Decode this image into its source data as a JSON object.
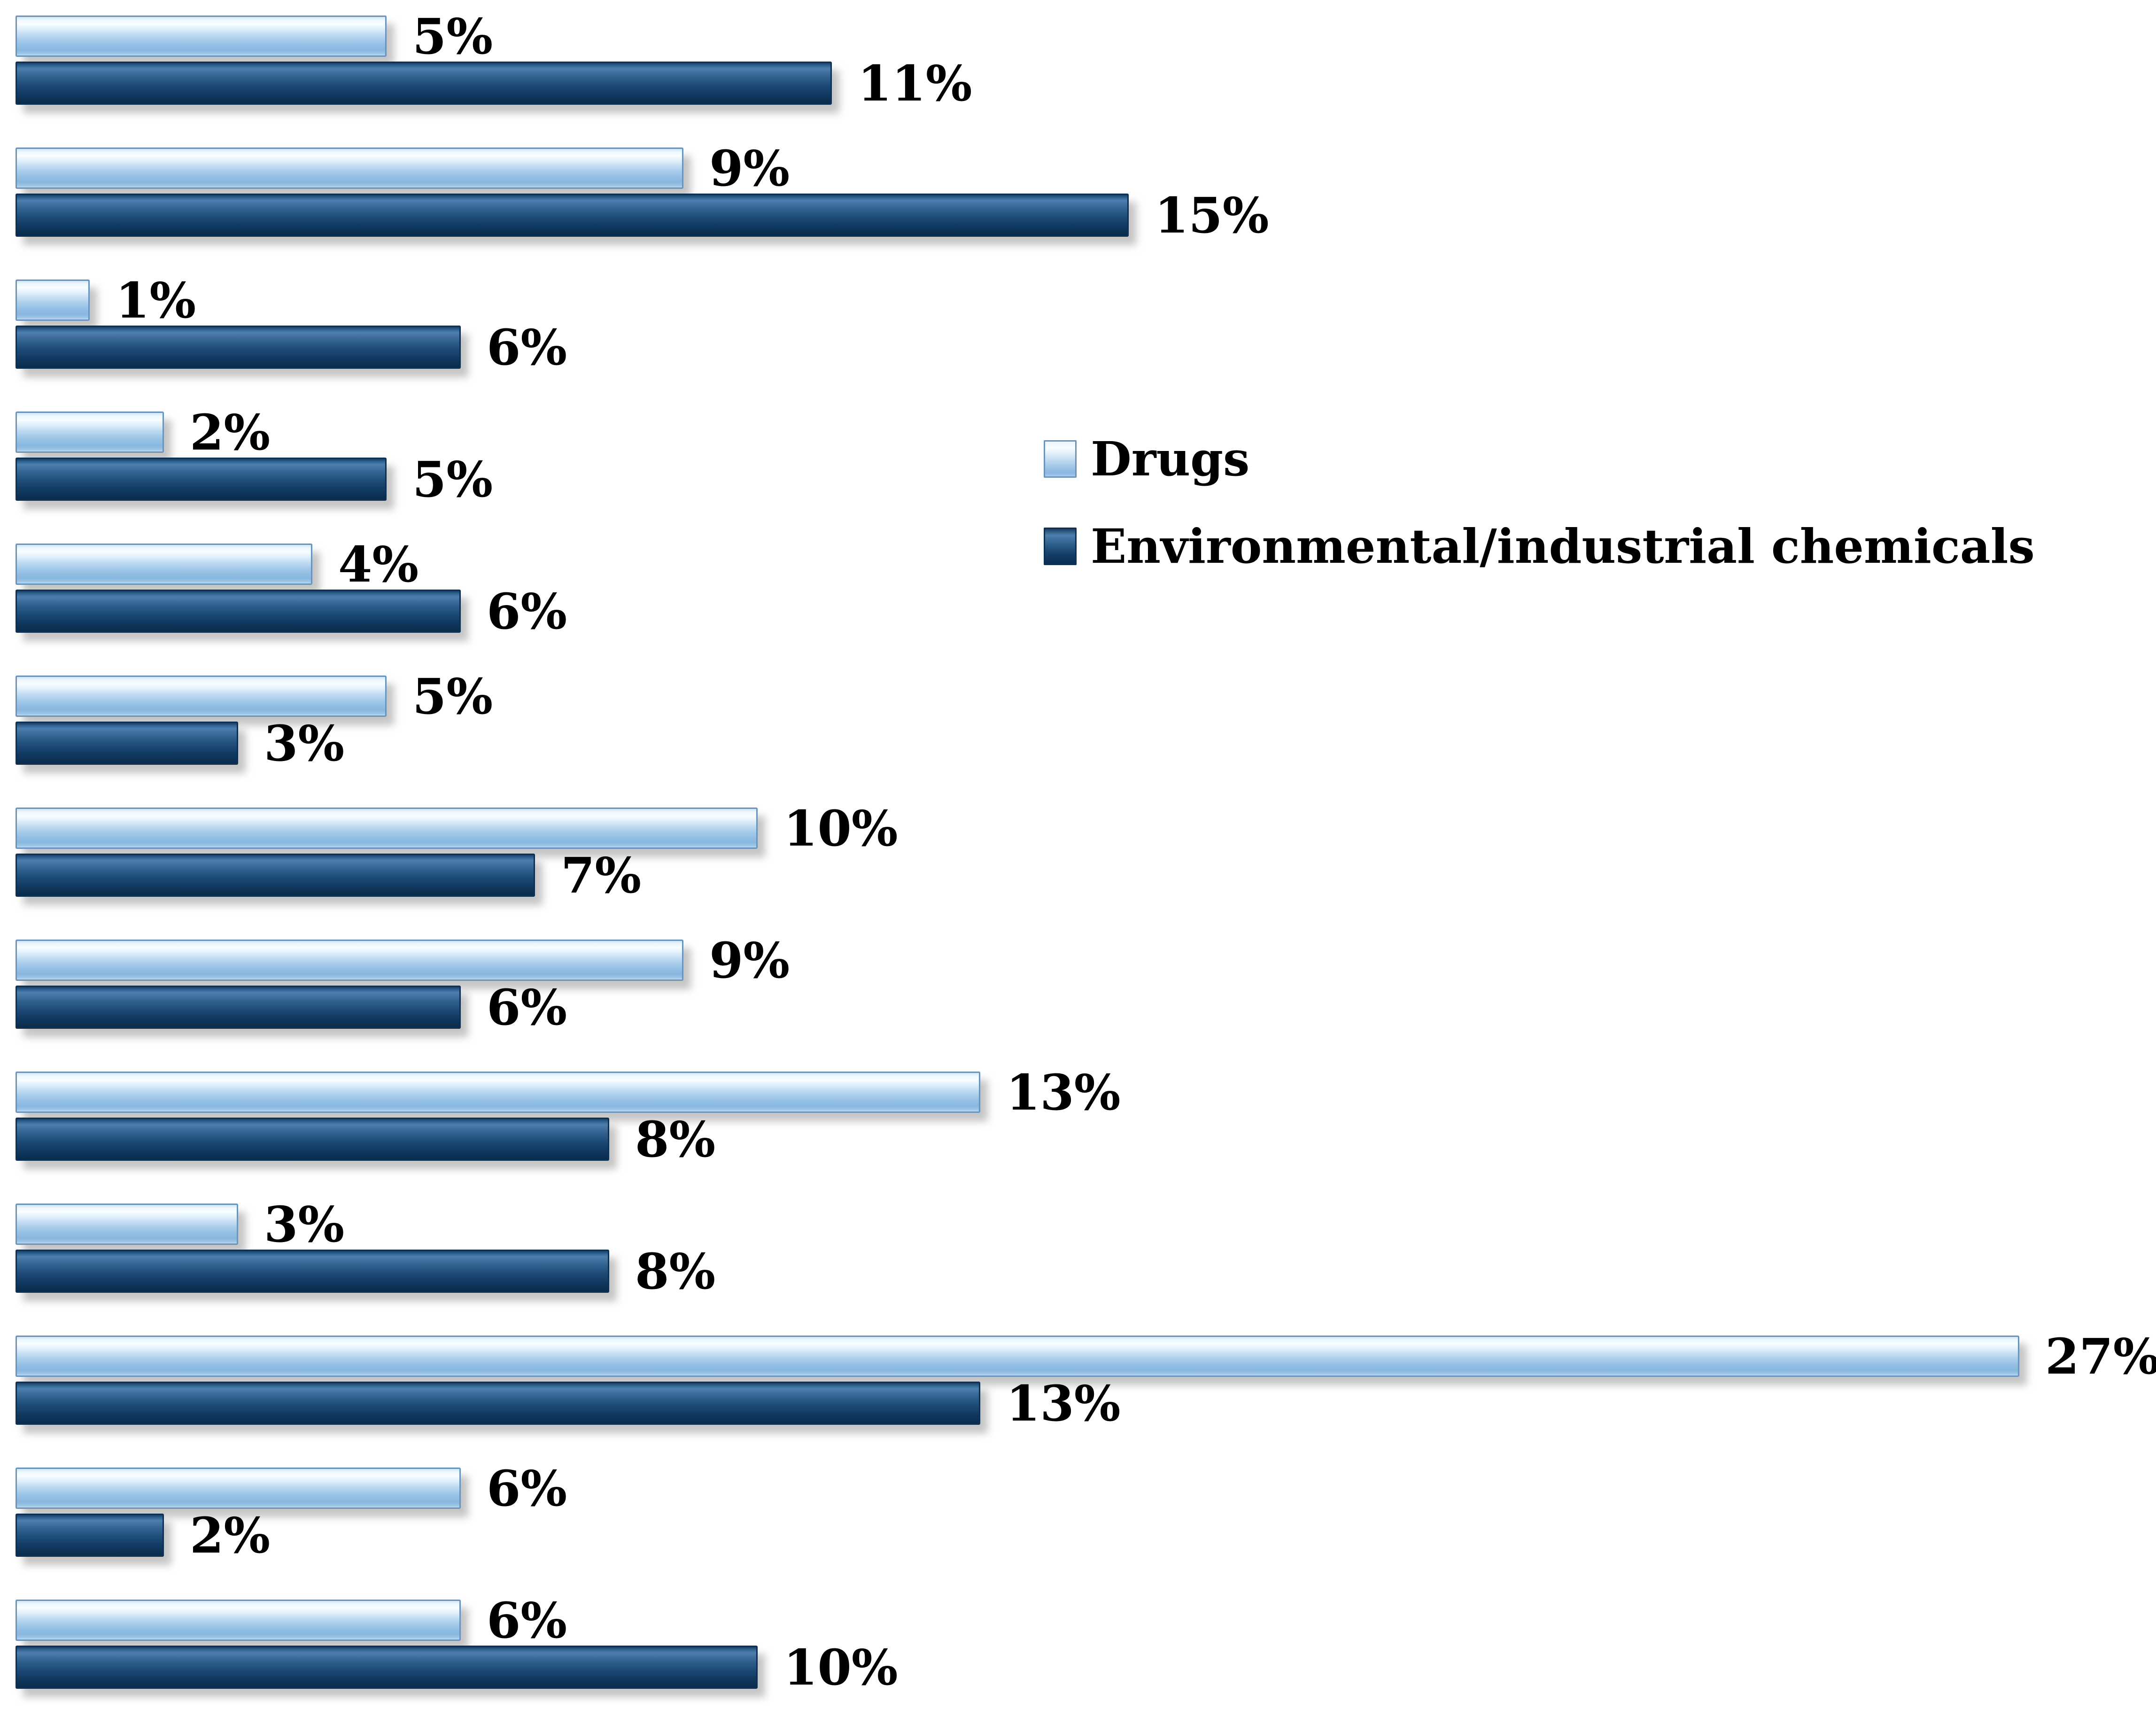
{
  "chart_data": {
    "type": "bar",
    "orientation": "horizontal",
    "title": "",
    "value_unit": "%",
    "n_rows": 13,
    "category_axis_labels_visible": false,
    "grid": false,
    "data_labels": true,
    "legend_position": "upper-right",
    "xlim": [
      0,
      28
    ],
    "series": [
      {
        "name": "Drugs",
        "color": "#9DC3E6",
        "values": [
          5,
          9,
          1,
          2,
          4,
          5,
          10,
          9,
          13,
          3,
          27,
          6,
          6
        ],
        "labels": [
          "5%",
          "9%",
          "1%",
          "2%",
          "4%",
          "5%",
          "10%",
          "9%",
          "13%",
          "3%",
          "27%",
          "6%",
          "6%"
        ]
      },
      {
        "name": "Environmental/industrial chemicals",
        "color": "#1F4E79",
        "values": [
          11,
          15,
          6,
          5,
          6,
          3,
          7,
          6,
          8,
          8,
          13,
          2,
          10
        ],
        "labels": [
          "11%",
          "15%",
          "6%",
          "5%",
          "6%",
          "3%",
          "7%",
          "6%",
          "8%",
          "8%",
          "13%",
          "2%",
          "10%"
        ]
      }
    ]
  },
  "legend": {
    "items": [
      {
        "label": "Drugs"
      },
      {
        "label": "Environmental/industrial chemicals"
      }
    ]
  },
  "colors": {
    "light_bar": "#9DC3E6",
    "dark_bar": "#1F4E79",
    "label_text": "#000000",
    "background": "#FFFFFF"
  }
}
